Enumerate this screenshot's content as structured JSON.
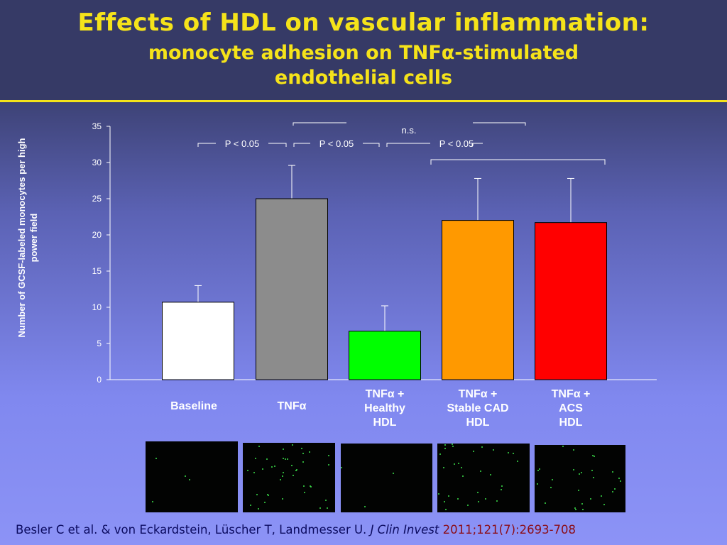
{
  "slide": {
    "title": "Effects of HDL on vascular inflammation:",
    "subtitle": "monocyte adhesion on TNFα-stimulated endothelial cells",
    "title_color": "#f5e31a"
  },
  "chart_data": {
    "type": "bar",
    "ylabel": "Number of GCSF-labeled monocytes per high power field",
    "xlabel": "",
    "ylim": [
      0,
      35
    ],
    "yticks": [
      0,
      5,
      10,
      15,
      20,
      25,
      30,
      35
    ],
    "categories": [
      {
        "lines": [
          "Baseline"
        ]
      },
      {
        "lines": [
          "TNFα"
        ]
      },
      {
        "lines": [
          "TNFα +",
          "Healthy",
          "HDL"
        ]
      },
      {
        "lines": [
          "TNFα +",
          "Stable CAD",
          "HDL"
        ]
      },
      {
        "lines": [
          "TNFα +",
          "ACS",
          "HDL"
        ]
      }
    ],
    "values": [
      10.7,
      25.0,
      6.7,
      22.0,
      21.7
    ],
    "errors": [
      2.3,
      4.6,
      3.5,
      5.8,
      6.1
    ],
    "colors": [
      "#ffffff",
      "#8c8c8c",
      "#00ff00",
      "#ff9900",
      "#ff0000"
    ],
    "significance": [
      {
        "label": "P < 0.05",
        "from": 0,
        "to": 1
      },
      {
        "label": "P < 0.05",
        "from": 1,
        "to": 2
      },
      {
        "label": "P < 0.05",
        "from": 2,
        "to": 3
      },
      {
        "label": "n.s.",
        "from": 3,
        "to": 4
      }
    ]
  },
  "images": {
    "count": 5,
    "dot_color": "#3ce04a"
  },
  "citation": {
    "authors": "Besler C et al. & von Eckardstein, Lüscher T, Landmesser U.",
    "journal": "J Clin Invest",
    "reference": "2011;121(7):2693-708"
  }
}
